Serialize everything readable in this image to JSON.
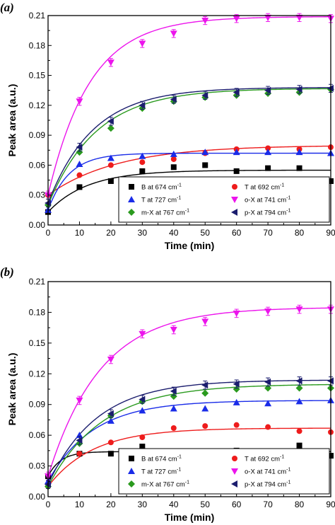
{
  "chart_data": [
    {
      "type": "scatter",
      "panel_label": "(a)",
      "xlabel": "Time (min)",
      "ylabel": "Peak area (a.u.)",
      "xlim": [
        0,
        90
      ],
      "ylim": [
        0,
        0.21
      ],
      "x_ticks": [
        "0",
        "10",
        "20",
        "30",
        "40",
        "50",
        "60",
        "70",
        "80",
        "90"
      ],
      "y_ticks": [
        "0.00",
        "0.03",
        "0.06",
        "0.09",
        "0.12",
        "0.15",
        "0.18",
        "0.21"
      ],
      "grid": false,
      "legend_position": "bottom-right",
      "x": [
        0,
        10,
        20,
        30,
        40,
        50,
        60,
        70,
        80,
        90
      ],
      "series": [
        {
          "name": "B at 674 cm",
          "superscript": "-1",
          "marker": "square",
          "color": "#000000",
          "values": [
            0.013,
            0.038,
            0.044,
            0.054,
            0.058,
            0.06,
            0.054,
            0.057,
            0.057,
            0.044
          ],
          "fit": {
            "a": 0.055,
            "b": 0.013,
            "k": 0.08
          }
        },
        {
          "name": "T at 692 cm",
          "superscript": "-1",
          "marker": "circle",
          "color": "#ee1c1c",
          "values": [
            0.03,
            0.05,
            0.06,
            0.063,
            0.066,
            0.072,
            0.076,
            0.077,
            0.076,
            0.078
          ],
          "fit": {
            "a": 0.08,
            "b": 0.03,
            "k": 0.045
          }
        },
        {
          "name": "T at 727 cm",
          "superscript": "-1",
          "marker": "triangle-up",
          "color": "#1a2ce8",
          "values": [
            0.015,
            0.061,
            0.067,
            0.069,
            0.071,
            0.073,
            0.073,
            0.073,
            0.073,
            0.072
          ],
          "fit": {
            "a": 0.072,
            "b": 0.015,
            "k": 0.15
          }
        },
        {
          "name": "o-X at 741 cm",
          "superscript": "-1",
          "marker": "triangle-down",
          "color": "#ec14ec",
          "values": [
            0.03,
            0.124,
            0.163,
            0.182,
            0.192,
            0.205,
            0.207,
            0.208,
            0.208,
            0.207
          ],
          "fit": {
            "a": 0.209,
            "b": 0.03,
            "k": 0.075
          }
        },
        {
          "name": "m-X at 767 cm",
          "superscript": "-1",
          "marker": "diamond",
          "color": "#2a9a1e",
          "values": [
            0.02,
            0.073,
            0.097,
            0.117,
            0.124,
            0.128,
            0.13,
            0.132,
            0.133,
            0.136
          ],
          "fit": {
            "a": 0.137,
            "b": 0.02,
            "k": 0.065
          }
        },
        {
          "name": "p-X at 794 cm",
          "superscript": "-1",
          "marker": "triangle-left",
          "color": "#1b1d6e",
          "values": [
            0.022,
            0.078,
            0.104,
            0.12,
            0.126,
            0.13,
            0.133,
            0.135,
            0.136,
            0.137
          ],
          "fit": {
            "a": 0.138,
            "b": 0.022,
            "k": 0.07
          }
        }
      ]
    },
    {
      "type": "scatter",
      "panel_label": "(b)",
      "xlabel": "Time (min)",
      "ylabel": "Peak area (a.u.)",
      "xlim": [
        0,
        90
      ],
      "ylim": [
        0,
        0.21
      ],
      "x_ticks": [
        "0",
        "10",
        "20",
        "30",
        "40",
        "50",
        "60",
        "70",
        "80",
        "90"
      ],
      "y_ticks": [
        "0.00",
        "0.03",
        "0.06",
        "0.09",
        "0.12",
        "0.15",
        "0.18",
        "0.21"
      ],
      "grid": false,
      "legend_position": "bottom-right",
      "x": [
        0,
        10,
        20,
        30,
        40,
        50,
        60,
        70,
        80,
        90
      ],
      "series": [
        {
          "name": "B at 674 cm",
          "superscript": "-1",
          "marker": "square",
          "color": "#000000",
          "values": [
            0.02,
            0.042,
            0.042,
            0.049,
            0.044,
            0.039,
            0.045,
            0.043,
            0.05,
            0.04
          ],
          "fit": {
            "a": 0.044,
            "b": 0.02,
            "k": 0.25
          }
        },
        {
          "name": "T at 692 cm",
          "superscript": "-1",
          "marker": "circle",
          "color": "#ee1c1c",
          "values": [
            0.01,
            0.042,
            0.053,
            0.058,
            0.067,
            0.069,
            0.07,
            0.068,
            0.064,
            0.063
          ],
          "fit": {
            "a": 0.067,
            "b": 0.01,
            "k": 0.07
          }
        },
        {
          "name": "T at 727 cm",
          "superscript": "-1",
          "marker": "triangle-up",
          "color": "#1a2ce8",
          "values": [
            0.015,
            0.06,
            0.074,
            0.084,
            0.086,
            0.086,
            0.092,
            0.091,
            0.093,
            0.094
          ],
          "fit": {
            "a": 0.094,
            "b": 0.015,
            "k": 0.07
          }
        },
        {
          "name": "o-X at 741 cm",
          "superscript": "-1",
          "marker": "triangle-down",
          "color": "#ec14ec",
          "values": [
            0.02,
            0.094,
            0.134,
            0.159,
            0.163,
            0.171,
            0.179,
            0.181,
            0.183,
            0.183
          ],
          "fit": {
            "a": 0.185,
            "b": 0.02,
            "k": 0.06
          }
        },
        {
          "name": "m-X at 767 cm",
          "superscript": "-1",
          "marker": "diamond",
          "color": "#2a9a1e",
          "values": [
            0.01,
            0.052,
            0.079,
            0.093,
            0.098,
            0.101,
            0.105,
            0.106,
            0.106,
            0.106
          ],
          "fit": {
            "a": 0.11,
            "b": 0.01,
            "k": 0.058
          }
        },
        {
          "name": "p-X at 794 cm",
          "superscript": "-1",
          "marker": "triangle-left",
          "color": "#1b1d6e",
          "values": [
            0.012,
            0.055,
            0.081,
            0.095,
            0.103,
            0.109,
            0.11,
            0.112,
            0.113,
            0.113
          ],
          "fit": {
            "a": 0.114,
            "b": 0.012,
            "k": 0.065
          }
        }
      ]
    }
  ]
}
